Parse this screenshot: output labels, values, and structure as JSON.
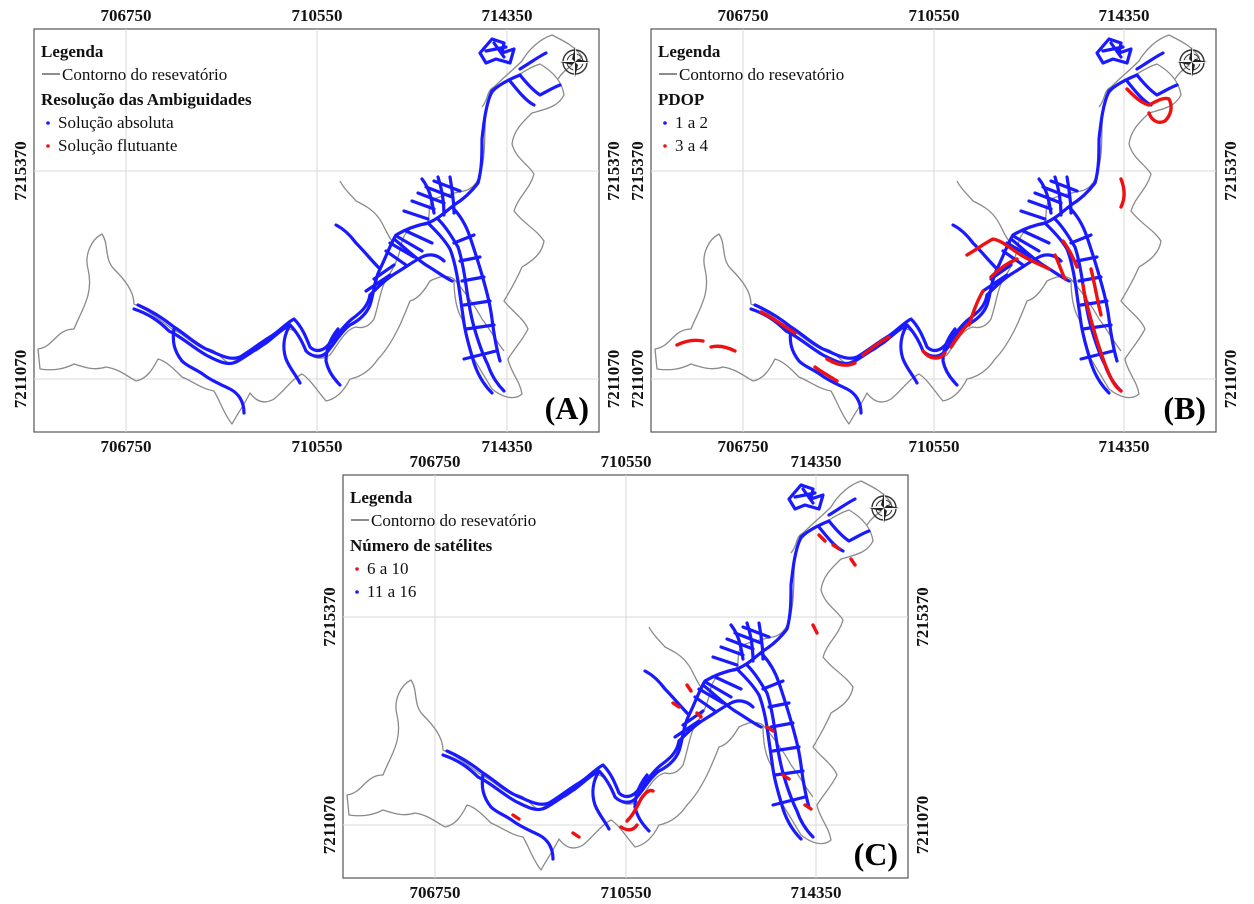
{
  "x_ticks": [
    "706750",
    "710550",
    "714350"
  ],
  "y_ticks": [
    "7215370",
    "7211070"
  ],
  "panels": [
    {
      "id": "A",
      "label": "(A)",
      "legend_title": "Legenda",
      "outline_label": "Contorno do resevatório",
      "class_title": "Resolução das Ambiguidades",
      "classes": [
        {
          "label": "Solução absoluta",
          "color": "#1a1aff"
        },
        {
          "label": "Solução flutuante",
          "color": "#ee1111"
        }
      ]
    },
    {
      "id": "B",
      "label": "(B)",
      "legend_title": "Legenda",
      "outline_label": "Contorno do resevatório",
      "class_title": "PDOP",
      "classes": [
        {
          "label": "1 a 2",
          "color": "#1a1aff"
        },
        {
          "label": "3 a 4",
          "color": "#ee1111"
        }
      ]
    },
    {
      "id": "C",
      "label": "(C)",
      "legend_title": "Legenda",
      "outline_label": "Contorno do resevatório",
      "class_title": "Número de satélites",
      "classes": [
        {
          "label": "6 a 10",
          "color": "#ee1111"
        },
        {
          "label": "11 a 16",
          "color": "#1a1aff"
        }
      ]
    }
  ]
}
